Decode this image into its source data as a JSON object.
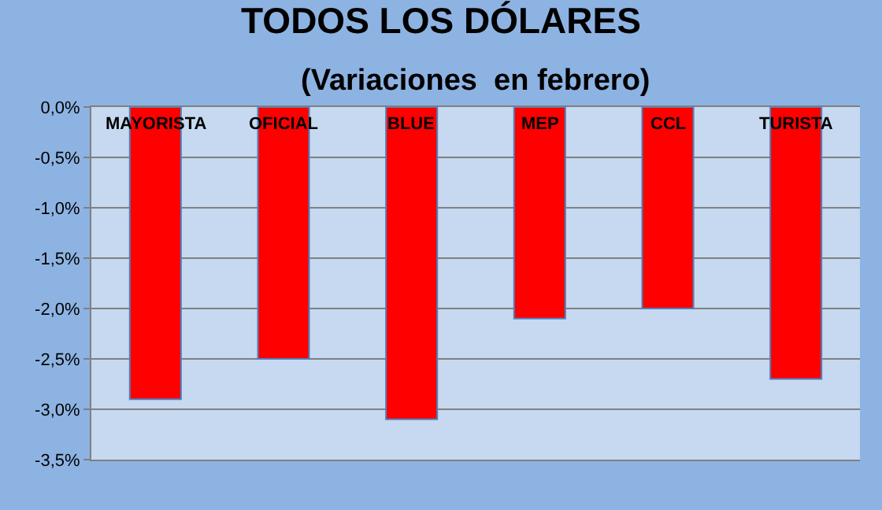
{
  "chart_data": {
    "type": "bar",
    "title": "TODOS LOS DÓLARES",
    "subtitle": "(Variaciones  en febrero)",
    "categories": [
      "MAYORISTA",
      "OFICIAL",
      "BLUE",
      "MEP",
      "CCL",
      "TURISTA"
    ],
    "values": [
      -2.9,
      -2.5,
      -3.1,
      -2.1,
      -2.0,
      -2.7
    ],
    "color": "#ff0000",
    "ylim": [
      -3.5,
      0
    ],
    "yticks": [
      {
        "value": 0,
        "label": "0,0%"
      },
      {
        "value": -0.5,
        "label": "-0,5%"
      },
      {
        "value": -1,
        "label": "-1,0%"
      },
      {
        "value": -1.5,
        "label": "-1,5%"
      },
      {
        "value": -2,
        "label": "-2,0%"
      },
      {
        "value": -2.5,
        "label": "-2,5%"
      },
      {
        "value": -3,
        "label": "-3,0%"
      },
      {
        "value": -3.5,
        "label": "-3,5%"
      }
    ],
    "grid": "y",
    "legend": false
  }
}
